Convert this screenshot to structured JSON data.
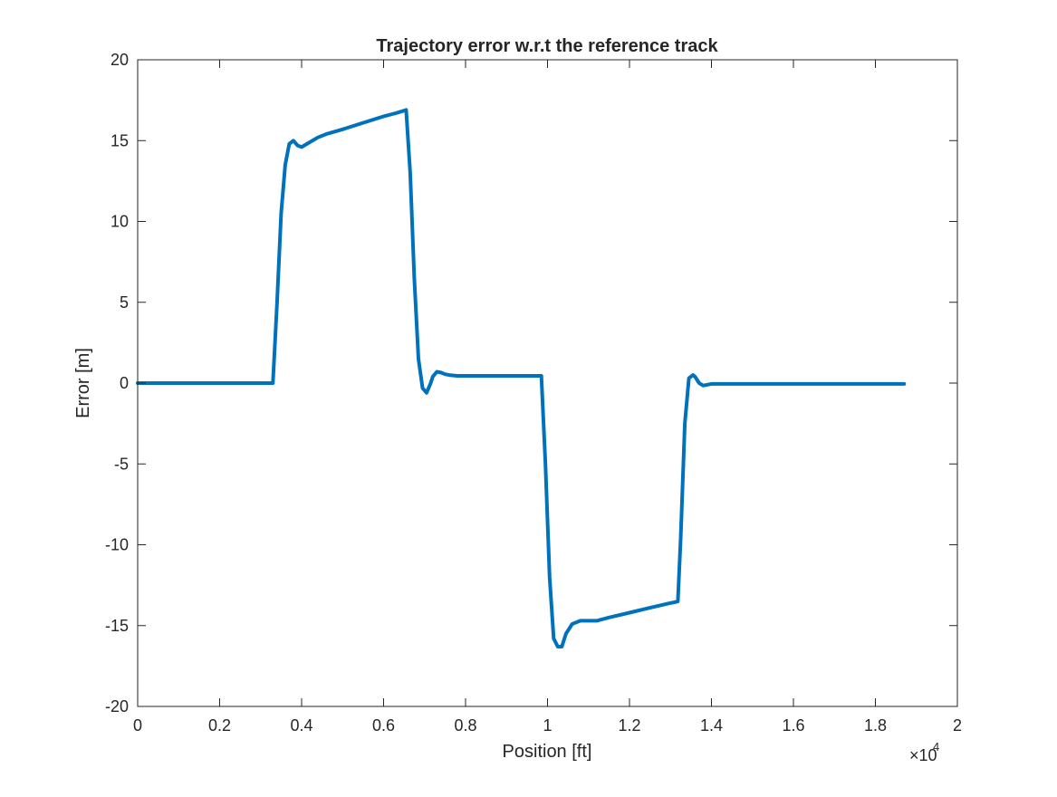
{
  "colors": {
    "line": "#0072BD",
    "axis": "#262626",
    "background": "#ffffff"
  },
  "chart_data": {
    "type": "line",
    "title": "Trajectory error w.r.t the reference track",
    "xlabel": "Position [ft]",
    "ylabel": "Error [m]",
    "x_exponent_label": "×10",
    "x_exponent_power": "4",
    "xlim": [
      0,
      2
    ],
    "ylim": [
      -20,
      20
    ],
    "x_ticks": [
      0,
      0.2,
      0.4,
      0.6,
      0.8,
      1,
      1.2,
      1.4,
      1.6,
      1.8,
      2
    ],
    "x_tick_labels": [
      "0",
      "0.2",
      "0.4",
      "0.6",
      "0.8",
      "1",
      "1.2",
      "1.4",
      "1.6",
      "1.8",
      "2"
    ],
    "y_ticks": [
      20,
      15,
      10,
      5,
      0,
      -5,
      -10,
      -15,
      -20
    ],
    "y_tick_labels": [
      "20",
      "15",
      "10",
      "5",
      "0",
      "-5",
      "-10",
      "-15",
      "-20"
    ],
    "grid": false,
    "box": true,
    "series": [
      {
        "x": [
          0,
          0.1,
          0.2,
          0.3,
          0.33,
          0.34,
          0.35,
          0.36,
          0.37,
          0.38,
          0.39,
          0.4,
          0.42,
          0.44,
          0.46,
          0.5,
          0.55,
          0.6,
          0.63,
          0.65,
          0.655,
          0.665,
          0.675,
          0.685,
          0.695,
          0.705,
          0.715,
          0.72,
          0.73,
          0.74,
          0.75,
          0.76,
          0.78,
          0.8,
          0.85,
          0.9,
          0.95,
          0.98,
          0.985,
          0.995,
          1.005,
          1.015,
          1.025,
          1.035,
          1.045,
          1.06,
          1.08,
          1.1,
          1.12,
          1.15,
          1.2,
          1.25,
          1.3,
          1.31,
          1.318,
          1.325,
          1.335,
          1.345,
          1.355,
          1.36,
          1.37,
          1.38,
          1.39,
          1.4,
          1.42,
          1.5,
          1.6,
          1.7,
          1.8,
          1.87
        ],
        "y": [
          0,
          0,
          0,
          0,
          0,
          5,
          10.5,
          13.5,
          14.8,
          15.0,
          14.7,
          14.6,
          14.9,
          15.2,
          15.4,
          15.7,
          16.1,
          16.5,
          16.7,
          16.85,
          16.9,
          13,
          6.5,
          1.5,
          -0.3,
          -0.6,
          0,
          0.4,
          0.7,
          0.65,
          0.55,
          0.5,
          0.45,
          0.45,
          0.45,
          0.45,
          0.45,
          0.45,
          0.45,
          -5,
          -12,
          -15.8,
          -16.3,
          -16.3,
          -15.5,
          -14.9,
          -14.7,
          -14.7,
          -14.7,
          -14.5,
          -14.2,
          -13.9,
          -13.6,
          -13.55,
          -13.5,
          -9.5,
          -2.5,
          0.3,
          0.5,
          0.4,
          0.0,
          -0.15,
          -0.1,
          -0.05,
          -0.05,
          -0.05,
          -0.05,
          -0.05,
          -0.05,
          -0.05
        ]
      }
    ]
  }
}
